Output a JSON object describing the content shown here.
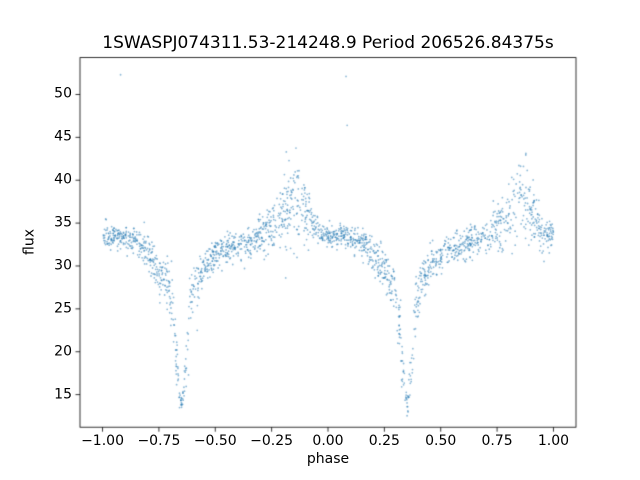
{
  "chart_data": {
    "type": "scatter",
    "title": "1SWASPJ074311.53-214248.9 Period 206526.84375s",
    "xlabel": "phase",
    "ylabel": "flux",
    "xlim": [
      -1.1,
      1.1
    ],
    "ylim": [
      11.2,
      54.3
    ],
    "x_ticks": [
      -1.0,
      -0.75,
      -0.5,
      -0.25,
      0.0,
      0.25,
      0.5,
      0.75,
      1.0
    ],
    "x_tick_labels": [
      "−1.00",
      "−0.75",
      "−0.50",
      "−0.25",
      "0.00",
      "0.25",
      "0.50",
      "0.75",
      "1.00"
    ],
    "y_ticks": [
      15,
      20,
      25,
      30,
      35,
      40,
      45,
      50
    ],
    "y_tick_labels": [
      "15",
      "20",
      "25",
      "30",
      "35",
      "40",
      "45",
      "50"
    ],
    "grid": false,
    "legend": null,
    "background": "#ffffff",
    "marker": {
      "color": "#1f77b4",
      "opacity": 0.5,
      "radius": 0.9
    },
    "series": [
      {
        "name": "flux",
        "n_points": 2000,
        "seed": 20240613,
        "x_range": [
          -1.0,
          1.0
        ],
        "fold_period": 1.0,
        "mean_curve": [
          [
            0.0,
            33.5,
            0.7
          ],
          [
            0.06,
            33.6,
            0.7
          ],
          [
            0.12,
            33.3,
            0.8
          ],
          [
            0.17,
            32.5,
            0.9
          ],
          [
            0.22,
            30.5,
            1.1
          ],
          [
            0.26,
            29.0,
            1.2
          ],
          [
            0.29,
            27.8,
            1.4
          ],
          [
            0.31,
            25.5,
            1.8
          ],
          [
            0.33,
            18.5,
            1.8
          ],
          [
            0.345,
            14.2,
            0.7
          ],
          [
            0.35,
            13.8,
            0.5
          ],
          [
            0.355,
            14.2,
            0.7
          ],
          [
            0.37,
            18.5,
            1.8
          ],
          [
            0.39,
            25.5,
            1.8
          ],
          [
            0.41,
            27.8,
            1.4
          ],
          [
            0.44,
            29.3,
            1.1
          ],
          [
            0.48,
            30.8,
            0.9
          ],
          [
            0.53,
            31.8,
            0.8
          ],
          [
            0.6,
            32.5,
            0.8
          ],
          [
            0.66,
            33.0,
            0.9
          ],
          [
            0.72,
            33.8,
            1.2
          ],
          [
            0.77,
            35.0,
            1.6
          ],
          [
            0.82,
            37.0,
            2.2
          ],
          [
            0.85,
            38.3,
            2.4
          ],
          [
            0.88,
            37.8,
            2.3
          ],
          [
            0.91,
            36.0,
            1.8
          ],
          [
            0.94,
            34.3,
            1.2
          ],
          [
            0.97,
            33.7,
            0.8
          ],
          [
            1.0,
            33.5,
            0.7
          ]
        ],
        "outliers": [
          [
            -0.92,
            52.3
          ],
          [
            0.08,
            52.1
          ],
          [
            0.085,
            46.4
          ],
          [
            -0.58,
            22.5
          ],
          [
            0.31,
            21.0
          ]
        ]
      }
    ]
  }
}
